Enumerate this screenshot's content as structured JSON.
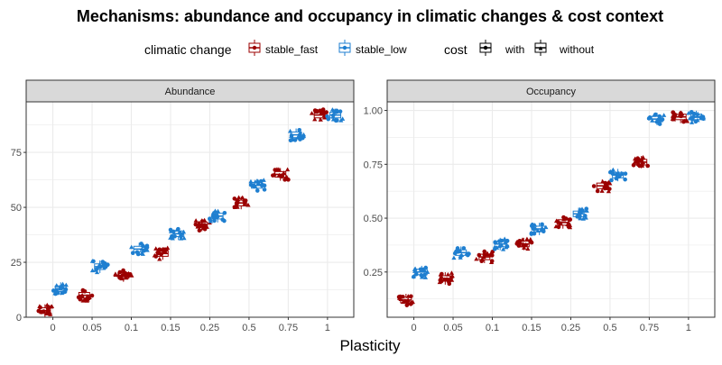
{
  "title": "Mechanisms: abundance and occupancy in climatic changes & cost context",
  "xlabel": "Plasticity",
  "colors": {
    "stable_fast": "#9b0000",
    "stable_low": "#1f7fd0",
    "panel_strip": "#d9d9d9",
    "grid": "#ebebeb"
  },
  "legend": {
    "climatic_title": "climatic change",
    "climatic_items": [
      "stable_fast",
      "stable_low"
    ],
    "cost_title": "cost",
    "cost_items": [
      "with",
      "without"
    ]
  },
  "chart_data": [
    {
      "type": "box-jitter",
      "panel": "Abundance",
      "categories": [
        "0",
        "0.05",
        "0.1",
        "0.15",
        "0.25",
        "0.5",
        "0.75",
        "1"
      ],
      "yticks": [
        0,
        25,
        50,
        75
      ],
      "ylim": [
        0,
        98
      ],
      "grid": true,
      "series": [
        {
          "name": "stable_fast",
          "medians": [
            3,
            10,
            19,
            29,
            42,
            52,
            65,
            92
          ]
        },
        {
          "name": "stable_low",
          "medians": [
            13,
            23,
            31,
            38,
            46,
            60,
            83,
            92
          ]
        }
      ]
    },
    {
      "type": "box-jitter",
      "panel": "Occupancy",
      "categories": [
        "0",
        "0.05",
        "0.1",
        "0.15",
        "0.25",
        "0.5",
        "0.75",
        "1"
      ],
      "yticks": [
        0.25,
        0.5,
        0.75,
        1.0
      ],
      "ytick_labels": [
        "0.25",
        "0.50",
        "0.75",
        "1.00"
      ],
      "ylim": [
        0.04,
        1.04
      ],
      "grid": true,
      "series": [
        {
          "name": "stable_fast",
          "medians": [
            0.12,
            0.22,
            0.32,
            0.38,
            0.48,
            0.65,
            0.76,
            0.97
          ]
        },
        {
          "name": "stable_low",
          "medians": [
            0.25,
            0.34,
            0.38,
            0.45,
            0.52,
            0.7,
            0.96,
            0.97
          ]
        }
      ]
    }
  ]
}
